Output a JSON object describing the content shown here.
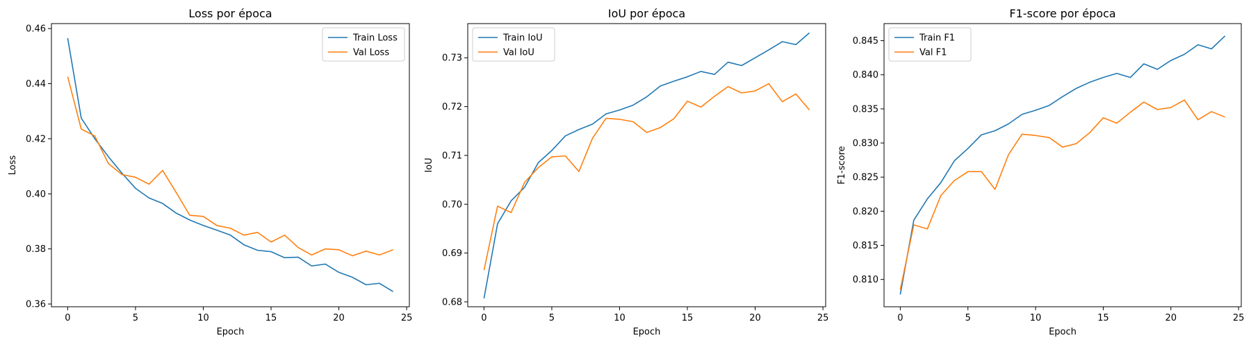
{
  "colors": {
    "train": "#1f77b4",
    "val": "#ff7f0e"
  },
  "chart_data": [
    {
      "type": "line",
      "title": "Loss por época",
      "xlabel": "Epoch",
      "ylabel": "Loss",
      "xlim": [
        -1.2,
        25.2
      ],
      "ylim": [
        0.359,
        0.4618
      ],
      "xticks": [
        0,
        5,
        10,
        15,
        20,
        25
      ],
      "yticks": [
        0.36,
        0.38,
        0.4,
        0.42,
        0.44,
        0.46
      ],
      "ytick_labels": [
        "0.36",
        "0.38",
        "0.40",
        "0.42",
        "0.44",
        "0.46"
      ],
      "legend_position": "upper-right",
      "grid": false,
      "x": [
        0,
        1,
        2,
        3,
        4,
        5,
        6,
        7,
        8,
        9,
        10,
        11,
        12,
        13,
        14,
        15,
        16,
        17,
        18,
        19,
        20,
        21,
        22,
        23,
        24
      ],
      "series": [
        {
          "name": "Train Loss",
          "color": "#1f77b4",
          "values": [
            0.4565,
            0.4275,
            0.42,
            0.4135,
            0.4075,
            0.402,
            0.3985,
            0.3965,
            0.393,
            0.3905,
            0.3885,
            0.3868,
            0.385,
            0.3815,
            0.3795,
            0.379,
            0.3768,
            0.377,
            0.3738,
            0.3745,
            0.3715,
            0.3697,
            0.367,
            0.3675,
            0.3645
          ]
        },
        {
          "name": "Val Loss",
          "color": "#ff7f0e",
          "values": [
            0.4425,
            0.4235,
            0.421,
            0.411,
            0.407,
            0.406,
            0.4035,
            0.4085,
            0.4005,
            0.3922,
            0.3918,
            0.3885,
            0.3875,
            0.385,
            0.386,
            0.3825,
            0.385,
            0.3805,
            0.3778,
            0.38,
            0.3797,
            0.3775,
            0.3792,
            0.3778,
            0.3797
          ]
        }
      ]
    },
    {
      "type": "line",
      "title": "IoU por época",
      "xlabel": "Epoch",
      "ylabel": "IoU",
      "xlim": [
        -1.2,
        25.2
      ],
      "ylim": [
        0.679,
        0.737
      ],
      "xticks": [
        0,
        5,
        10,
        15,
        20,
        25
      ],
      "yticks": [
        0.68,
        0.69,
        0.7,
        0.71,
        0.72,
        0.73
      ],
      "ytick_labels": [
        "0.68",
        "0.69",
        "0.70",
        "0.71",
        "0.72",
        "0.73"
      ],
      "legend_position": "upper-left",
      "grid": false,
      "x": [
        0,
        1,
        2,
        3,
        4,
        5,
        6,
        7,
        8,
        9,
        10,
        11,
        12,
        13,
        14,
        15,
        16,
        17,
        18,
        19,
        20,
        21,
        22,
        23,
        24
      ],
      "series": [
        {
          "name": "Train IoU",
          "color": "#1f77b4",
          "values": [
            0.6807,
            0.696,
            0.7007,
            0.7035,
            0.7085,
            0.711,
            0.714,
            0.7153,
            0.7164,
            0.7185,
            0.7193,
            0.7203,
            0.722,
            0.7242,
            0.7252,
            0.7261,
            0.7272,
            0.7266,
            0.7291,
            0.7284,
            0.73,
            0.7316,
            0.7333,
            0.7327,
            0.7351
          ]
        },
        {
          "name": "Val IoU",
          "color": "#ff7f0e",
          "values": [
            0.6865,
            0.6996,
            0.6983,
            0.7045,
            0.7075,
            0.7097,
            0.7099,
            0.7067,
            0.7135,
            0.7176,
            0.7174,
            0.7169,
            0.7147,
            0.7157,
            0.7175,
            0.7211,
            0.7199,
            0.7221,
            0.7241,
            0.7228,
            0.7232,
            0.7247,
            0.721,
            0.7226,
            0.7193
          ]
        }
      ]
    },
    {
      "type": "line",
      "title": "F1-score por época",
      "xlabel": "Epoch",
      "ylabel": "F1-score",
      "xlim": [
        -1.2,
        25.2
      ],
      "ylim": [
        0.806,
        0.8475
      ],
      "xticks": [
        0,
        5,
        10,
        15,
        20,
        25
      ],
      "yticks": [
        0.81,
        0.815,
        0.82,
        0.825,
        0.83,
        0.835,
        0.84,
        0.845
      ],
      "ytick_labels": [
        "0.810",
        "0.815",
        "0.820",
        "0.825",
        "0.830",
        "0.835",
        "0.840",
        "0.845"
      ],
      "legend_position": "upper-left",
      "grid": false,
      "x": [
        0,
        1,
        2,
        3,
        4,
        5,
        6,
        7,
        8,
        9,
        10,
        11,
        12,
        13,
        14,
        15,
        16,
        17,
        18,
        19,
        20,
        21,
        22,
        23,
        24
      ],
      "series": [
        {
          "name": "Train F1",
          "color": "#1f77b4",
          "values": [
            0.8078,
            0.8187,
            0.8218,
            0.8242,
            0.8274,
            0.8292,
            0.8312,
            0.8318,
            0.8328,
            0.8342,
            0.8348,
            0.8355,
            0.8368,
            0.838,
            0.8389,
            0.8396,
            0.8402,
            0.8396,
            0.8416,
            0.8408,
            0.8421,
            0.843,
            0.8444,
            0.8438,
            0.8457
          ]
        },
        {
          "name": "Val F1",
          "color": "#ff7f0e",
          "values": [
            0.8085,
            0.818,
            0.8174,
            0.8223,
            0.8245,
            0.8258,
            0.8258,
            0.8232,
            0.8283,
            0.8313,
            0.8311,
            0.8308,
            0.8294,
            0.8299,
            0.8315,
            0.8337,
            0.8329,
            0.8345,
            0.836,
            0.8349,
            0.8352,
            0.8363,
            0.8334,
            0.8346,
            0.8338
          ]
        }
      ]
    }
  ]
}
